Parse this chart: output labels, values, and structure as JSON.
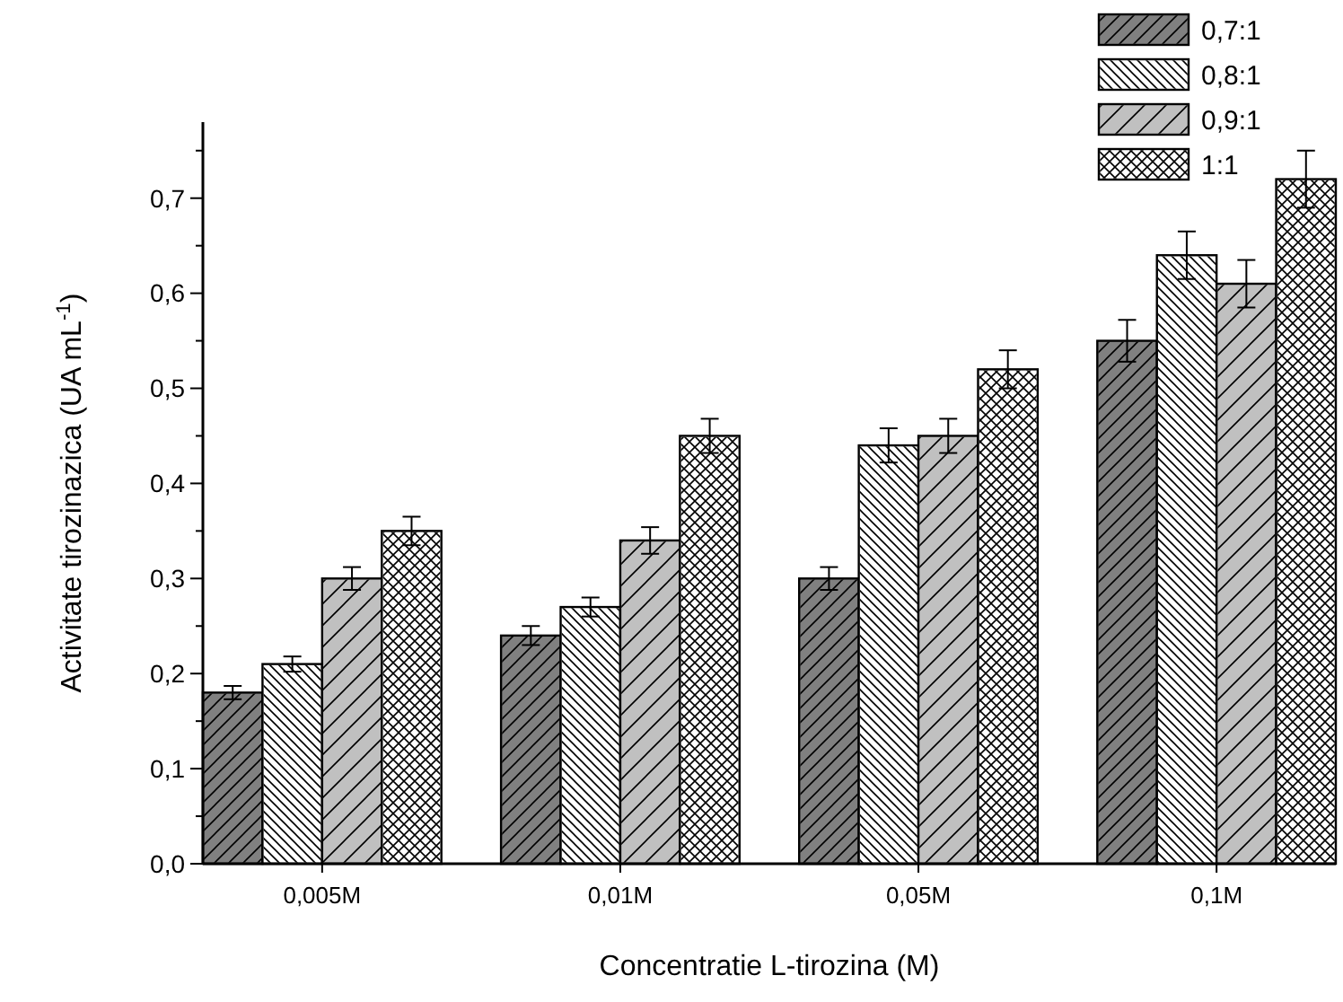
{
  "chart_data": {
    "type": "bar",
    "xlabel": "Concentratie L-tirozina (M)",
    "ylabel": "Activitate tirozinazica (UA mL$^{-1}$)",
    "categories": [
      "0,005M",
      "0,01M",
      "0,05M",
      "0,1M"
    ],
    "series": [
      {
        "name": "0,7:1",
        "color": "#808080",
        "values": [
          0.18,
          0.24,
          0.3,
          0.55
        ],
        "errors": [
          0.007,
          0.01,
          0.012,
          0.022
        ]
      },
      {
        "name": "0,8:1",
        "color": "#ffffff",
        "values": [
          0.21,
          0.27,
          0.44,
          0.64
        ],
        "errors": [
          0.008,
          0.01,
          0.018,
          0.025
        ]
      },
      {
        "name": "0,9:1",
        "color": "#c0c0c0",
        "values": [
          0.3,
          0.34,
          0.45,
          0.61
        ],
        "errors": [
          0.012,
          0.014,
          0.018,
          0.025
        ]
      },
      {
        "name": "1:1",
        "color": "#ffffff",
        "values": [
          0.35,
          0.45,
          0.52,
          0.72
        ],
        "errors": [
          0.015,
          0.018,
          0.02,
          0.03
        ]
      }
    ],
    "ylim": [
      0,
      0.78
    ],
    "yticks": [
      {
        "value": 0,
        "label": "0,0"
      },
      {
        "value": 0.05,
        "label": null
      },
      {
        "value": 0.1,
        "label": "0,1"
      },
      {
        "value": 0.15,
        "label": null
      },
      {
        "value": 0.2,
        "label": "0,2"
      },
      {
        "value": 0.25,
        "label": null
      },
      {
        "value": 0.3,
        "label": "0,3"
      },
      {
        "value": 0.35,
        "label": null
      },
      {
        "value": 0.4,
        "label": "0,4"
      },
      {
        "value": 0.45,
        "label": null
      },
      {
        "value": 0.5,
        "label": "0,5"
      },
      {
        "value": 0.55,
        "label": null
      },
      {
        "value": 0.6,
        "label": "0,6"
      },
      {
        "value": 0.65,
        "label": null
      },
      {
        "value": 0.7,
        "label": "0,7"
      },
      {
        "value": 0.75,
        "label": null
      }
    ],
    "grid": false,
    "legend": "top right"
  }
}
